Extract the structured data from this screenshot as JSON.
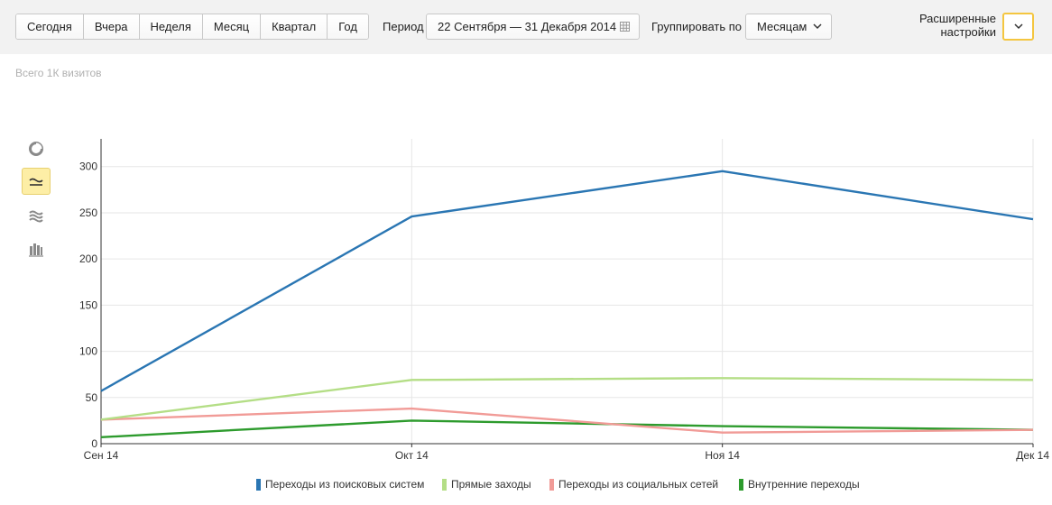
{
  "toolbar": {
    "ranges": [
      "Сегодня",
      "Вчера",
      "Неделя",
      "Месяц",
      "Квартал",
      "Год"
    ],
    "period_label": "Период",
    "period_value": "22 Сентября — 31 Декабря 2014",
    "group_label": "Группировать по",
    "group_value": "Месяцам",
    "advanced_label": "Расширенные настройки"
  },
  "summary": {
    "total_text": "Всего 1К визитов"
  },
  "colors": {
    "search": "#2a76b3",
    "direct": "#b4de86",
    "social": "#f19b97",
    "internal": "#2d9b2d",
    "grid": "#e6e6e6",
    "axis": "#333333",
    "active_bg": "#fdeea6",
    "accent": "#f4c640"
  },
  "chart_types": [
    {
      "name": "pie-chart-icon",
      "active": false
    },
    {
      "name": "line-chart-icon",
      "active": true
    },
    {
      "name": "area-chart-icon",
      "active": false
    },
    {
      "name": "bar-chart-icon",
      "active": false
    }
  ],
  "chart_data": {
    "type": "line",
    "categories": [
      "Сен 14",
      "Окт 14",
      "Ноя 14",
      "Дек 14"
    ],
    "ylim": [
      0,
      330
    ],
    "yticks": [
      0,
      50,
      100,
      150,
      200,
      250,
      300
    ],
    "series": [
      {
        "name": "Переходы из поисковых систем",
        "color": "#2a76b3",
        "values": [
          57,
          246,
          295,
          243
        ]
      },
      {
        "name": "Прямые заходы",
        "color": "#b4de86",
        "values": [
          26,
          69,
          71,
          69
        ]
      },
      {
        "name": "Переходы из социальных сетей",
        "color": "#f19b97",
        "values": [
          26,
          38,
          12,
          15
        ]
      },
      {
        "name": "Внутренние переходы",
        "color": "#2d9b2d",
        "values": [
          7,
          25,
          19,
          15
        ]
      }
    ],
    "legend": [
      "Переходы из поисковых систем",
      "Прямые заходы",
      "Переходы из социальных сетей",
      "Внутренние переходы"
    ],
    "grid": true,
    "legend_position": "bottom"
  }
}
